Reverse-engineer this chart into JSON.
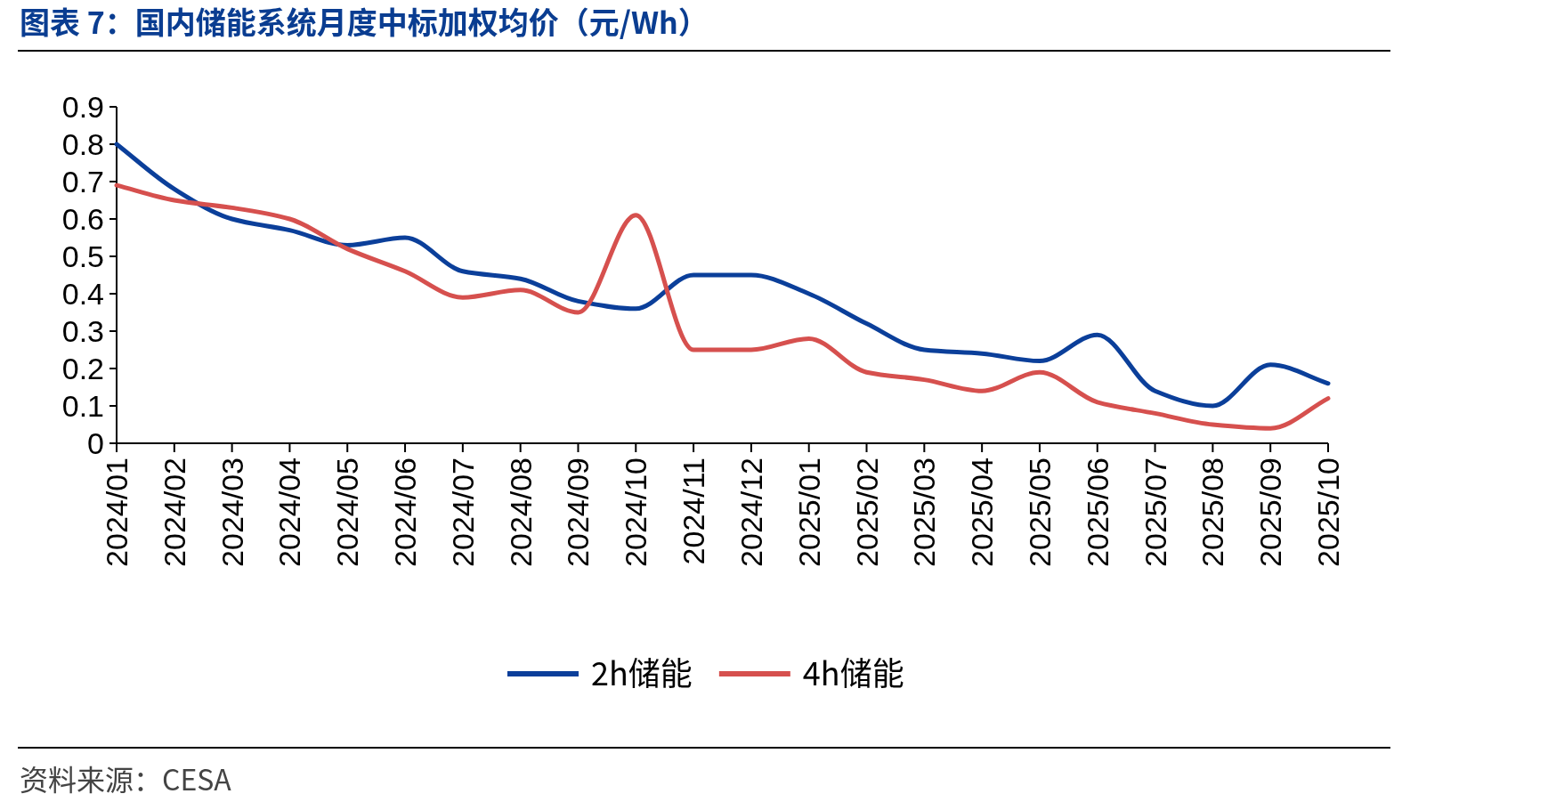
{
  "chart_data": {
    "type": "line",
    "title": "图表 7：国内储能系统月度中标加权均价（元/Wh）",
    "categories": [
      "2024/01",
      "2024/02",
      "2024/03",
      "2024/04",
      "2024/05",
      "2024/06",
      "2024/07",
      "2024/08",
      "2024/09",
      "2024/10",
      "2024/11",
      "2024/12",
      "2025/01",
      "2025/02",
      "2025/03",
      "2025/04",
      "2025/05",
      "2025/06",
      "2025/07",
      "2025/08",
      "2025/09",
      "2025/10"
    ],
    "series": [
      {
        "name": "2h储能",
        "color": "#0b3f9a",
        "values": [
          0.8,
          0.68,
          0.6,
          0.57,
          0.53,
          0.55,
          0.46,
          0.44,
          0.38,
          0.36,
          0.45,
          0.45,
          0.4,
          0.32,
          0.25,
          0.24,
          0.22,
          0.29,
          0.14,
          0.1,
          0.21,
          0.16
        ]
      },
      {
        "name": "4h储能",
        "color": "#d6504e",
        "values": [
          0.69,
          0.65,
          0.63,
          0.6,
          0.52,
          0.46,
          0.39,
          0.41,
          0.35,
          0.61,
          0.25,
          0.25,
          0.28,
          0.19,
          0.17,
          0.14,
          0.19,
          0.11,
          0.08,
          0.05,
          0.04,
          0.12
        ]
      }
    ],
    "ylim": [
      0,
      0.9
    ],
    "yticks": [
      0,
      0.1,
      0.2,
      0.3,
      0.4,
      0.5,
      0.6,
      0.7,
      0.8,
      0.9
    ],
    "legend": "bottom",
    "grid": false,
    "annotations": [
      "资料来源：CESA"
    ]
  }
}
